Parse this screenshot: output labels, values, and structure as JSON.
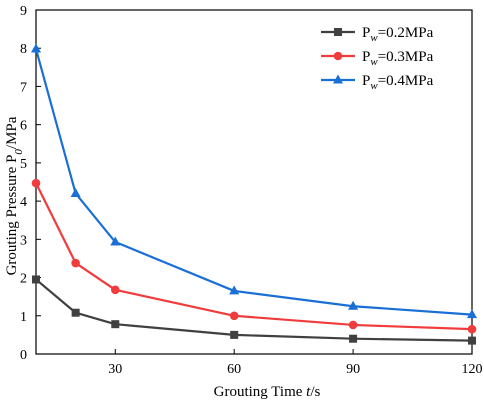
{
  "chart_data": {
    "type": "line",
    "xlabel": {
      "main": "Grouting Time ",
      "var": "t",
      "unit": "/s"
    },
    "ylabel": {
      "main": "Grouting Pressure P",
      "sub": "0",
      "unit": "/MPa"
    },
    "xlim": [
      10,
      120
    ],
    "ylim": [
      0,
      9
    ],
    "xticks": [
      30,
      60,
      90,
      120
    ],
    "yticks": [
      0,
      1,
      2,
      3,
      4,
      5,
      6,
      7,
      8,
      9
    ],
    "x": [
      10,
      20,
      30,
      60,
      90,
      120
    ],
    "series": [
      {
        "name": "0.2MPa",
        "color": "#404040",
        "marker": "square",
        "values": [
          1.95,
          1.08,
          0.78,
          0.5,
          0.4,
          0.35
        ]
      },
      {
        "name": "0.3MPa",
        "color": "#f03c3c",
        "marker": "circle",
        "values": [
          4.47,
          2.38,
          1.68,
          1.0,
          0.76,
          0.65
        ]
      },
      {
        "name": "0.4MPa",
        "color": "#1a6fd6",
        "marker": "triangle",
        "values": [
          7.98,
          4.2,
          2.93,
          1.65,
          1.25,
          1.03
        ]
      }
    ],
    "legend": {
      "prefix": "P",
      "sub": "w",
      "eq": "=",
      "position": "top-right"
    },
    "grid": false
  }
}
